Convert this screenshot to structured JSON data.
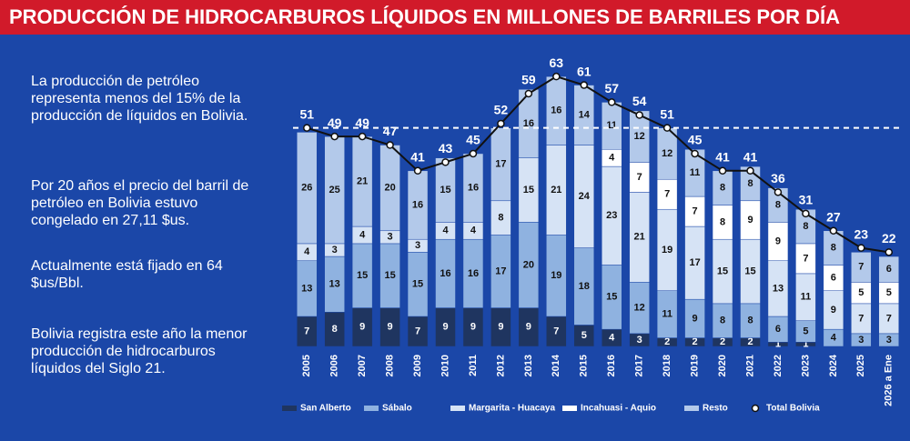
{
  "chart_data": {
    "type": "stacked_bar_line",
    "title": "PRODUCCIÓN DE HIDROCARBUROS LÍQUIDOS EN MILLONES DE BARRILES POR DÍA",
    "notes": [
      "La producción de  petróleo representa menos del 15% de la producción de líquidos en Bolivia.",
      "Por 20 años el precio del barril de petróleo en Bolivia estuvo congelado en 27,11 $us.",
      "Actualmente está fijado en 64 $us/Bbl.",
      "Bolivia registra este año la menor producción de hidrocarburos líquidos del Siglo 21."
    ],
    "categories": [
      "2005",
      "2006",
      "2007",
      "2008",
      "2009",
      "2010",
      "2011",
      "2012",
      "2013",
      "2014",
      "2015",
      "2016",
      "2017",
      "2018",
      "2019",
      "2020",
      "2021",
      "2022",
      "2023",
      "2024",
      "2025",
      "2026 a Ene"
    ],
    "series": [
      {
        "name": "San Alberto",
        "color": "#1f3560",
        "values": [
          7,
          8,
          9,
          9,
          7,
          9,
          9,
          9,
          9,
          7,
          5,
          4,
          3,
          2,
          2,
          2,
          2,
          1,
          1,
          0,
          0,
          0
        ]
      },
      {
        "name": "Sábalo",
        "color": "#8fb2e0",
        "values": [
          13,
          13,
          15,
          15,
          15,
          16,
          16,
          17,
          20,
          19,
          18,
          15,
          12,
          11,
          9,
          8,
          8,
          6,
          5,
          4,
          3,
          3
        ]
      },
      {
        "name": "Margarita - Huacaya",
        "color": "#d6e3f5",
        "values": [
          4,
          3,
          4,
          3,
          3,
          4,
          4,
          8,
          15,
          21,
          24,
          23,
          21,
          19,
          17,
          15,
          15,
          13,
          11,
          9,
          7,
          7
        ]
      },
      {
        "name": "Incahuasi - Aquio",
        "color": "#ffffff",
        "values": [
          null,
          null,
          null,
          null,
          null,
          null,
          null,
          null,
          null,
          null,
          null,
          4,
          7,
          7,
          7,
          8,
          9,
          9,
          7,
          6,
          5,
          5
        ]
      },
      {
        "name": "Resto",
        "color": "#b3c9ea",
        "values": [
          26,
          25,
          21,
          20,
          16,
          15,
          16,
          17,
          16,
          16,
          14,
          11,
          12,
          12,
          11,
          8,
          8,
          8,
          8,
          8,
          7,
          6
        ]
      }
    ],
    "total": {
      "name": "Total Bolivia",
      "color": "#111111",
      "values": [
        51,
        49,
        49,
        47,
        41,
        43,
        45,
        52,
        59,
        63,
        61,
        57,
        54,
        51,
        45,
        41,
        41,
        36,
        31,
        27,
        23,
        22
      ]
    },
    "reference_line": 51,
    "ylim": [
      0,
      66
    ]
  }
}
